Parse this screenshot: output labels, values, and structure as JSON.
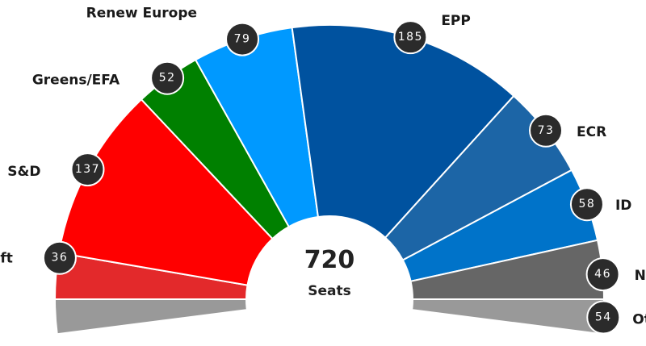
{
  "chart_data": {
    "type": "pie",
    "subtype": "parliament-semicircle",
    "total": "720",
    "total_label": "Seats",
    "series": [
      {
        "name": "Left",
        "value": 36,
        "color": "#e3292b"
      },
      {
        "name": "S&D",
        "value": 137,
        "color": "#ff0000"
      },
      {
        "name": "Greens/EFA",
        "value": 52,
        "color": "#008000"
      },
      {
        "name": "Renew Europe",
        "value": 79,
        "color": "#0099ff"
      },
      {
        "name": "EPP",
        "value": 185,
        "color": "#00529f"
      },
      {
        "name": "ECR",
        "value": 73,
        "color": "#1c65a6"
      },
      {
        "name": "ID",
        "value": 58,
        "color": "#0073c9"
      },
      {
        "name": "NI",
        "value": 46,
        "color": "#666666"
      },
      {
        "name": "Others",
        "value": 54,
        "color": "#999999"
      }
    ],
    "bubble_color": "#2b2b2b"
  }
}
